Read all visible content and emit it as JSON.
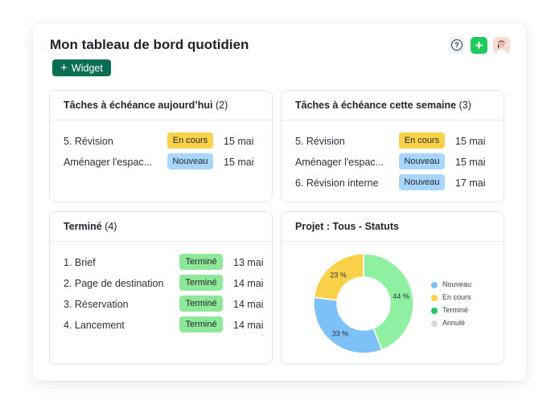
{
  "header": {
    "title": "Mon tableau de bord quotidien",
    "widget_button": "Widget",
    "help_icon_glyph": "?",
    "add_icon_glyph": "+"
  },
  "colors": {
    "en_cours": "#fcd14a",
    "nouveau": "#a9d5fb",
    "termine": "#8ee89a",
    "accent": "#0b6d52"
  },
  "today_card": {
    "title": "Tâches à échéance aujourd’hui",
    "count": "(2)",
    "rows": [
      {
        "label": "5. Révision",
        "status": "En cours",
        "date": "15 mai"
      },
      {
        "label": "Aménager l'espac...",
        "status": "Nouveau",
        "date": "15 mai"
      }
    ]
  },
  "week_card": {
    "title": "Tâches à échéance cette semaine",
    "count": "(3)",
    "rows": [
      {
        "label": "5. Révision",
        "status": "En cours",
        "date": "15 mai"
      },
      {
        "label": "Aménager l'espac...",
        "status": "Nouveau",
        "date": "15 mai"
      },
      {
        "label": "6. Révision interne",
        "status": "Nouveau",
        "date": "17 mai"
      }
    ]
  },
  "done_card": {
    "title": "Terminé",
    "count": "(4)",
    "rows": [
      {
        "label": "1. Brief",
        "status": "Terminé",
        "date": "13 mai"
      },
      {
        "label": "2. Page de destination",
        "status": "Terminé",
        "date": "14 mai"
      },
      {
        "label": "3. Réservation",
        "status": "Terminé",
        "date": "14 mai"
      },
      {
        "label": "4. Lancement",
        "status": "Terminé",
        "date": "14 mai"
      }
    ]
  },
  "chart_card": {
    "title": "Projet : Tous - Statuts"
  },
  "chart_data": {
    "type": "pie",
    "title": "Projet : Tous - Statuts",
    "donut": true,
    "legend_position": "right",
    "slices": [
      {
        "name": "Nouveau",
        "value": 33,
        "label": "33 %",
        "color": "#7cc1f7"
      },
      {
        "name": "En cours",
        "value": 23,
        "label": "23 %",
        "color": "#fcd14a"
      },
      {
        "name": "Terminé",
        "value": 44,
        "label": "44 %",
        "color": "#8ef0a0"
      },
      {
        "name": "Annulé",
        "value": 0,
        "label": "",
        "color": "#d9d9d9"
      }
    ],
    "legend": [
      {
        "name": "Nouveau",
        "color": "#7cc1f7"
      },
      {
        "name": "En cours",
        "color": "#fcd14a"
      },
      {
        "name": "Terminé",
        "color": "#1fc95d"
      },
      {
        "name": "Annulé",
        "color": "#d9d9d9"
      }
    ]
  }
}
